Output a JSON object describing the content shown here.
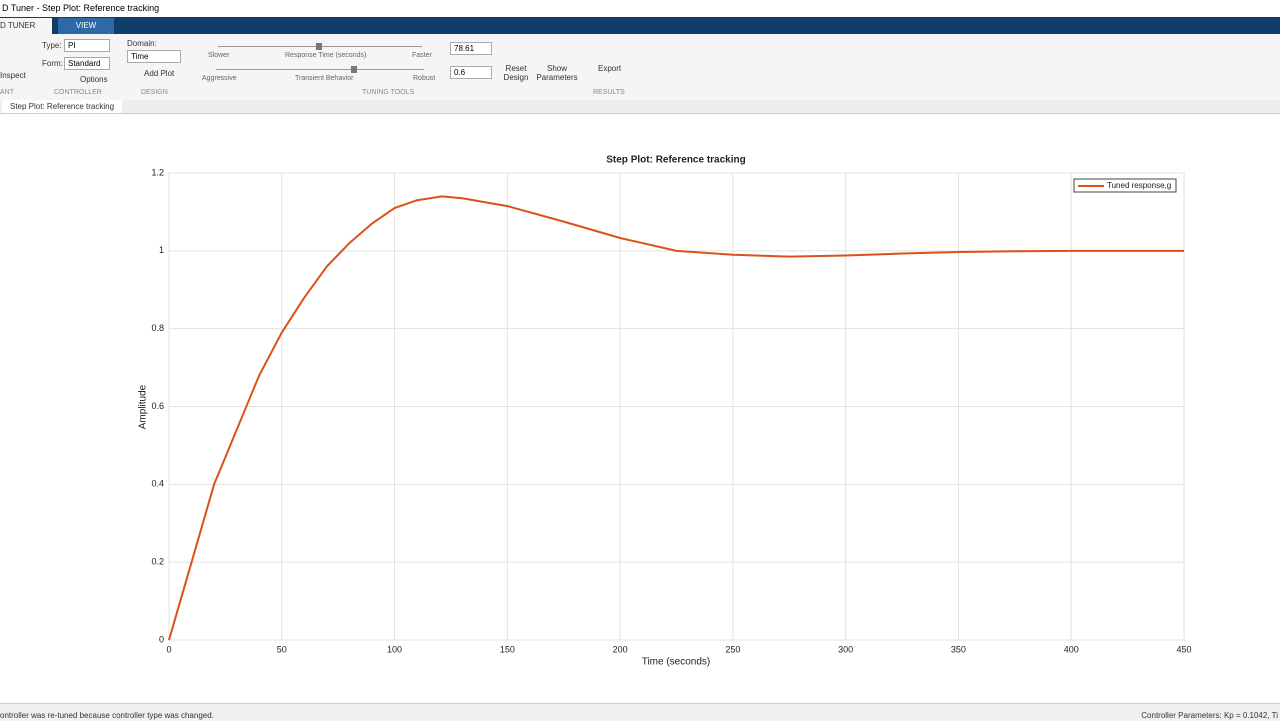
{
  "ui": {
    "window_title": "D Tuner - Step Plot: Reference tracking",
    "tabs": [
      "D TUNER",
      "VIEW"
    ],
    "controller": {
      "type_label": "Type:",
      "type_value": "PI",
      "form_label": "Form:",
      "form_value": "Standard",
      "inspect": "Inspect",
      "options": "Options"
    },
    "design": {
      "domain_label": "Domain:",
      "domain_value": "Time",
      "add_plot": "Add Plot"
    },
    "tuning": {
      "slower": "Slower",
      "response_time": "Response Time (seconds)",
      "faster": "Faster",
      "aggressive": "Aggressive",
      "transient": "Transient Behavior",
      "robust": "Robust",
      "response_value": "78.61",
      "transient_value": "0.6",
      "reset": "Reset Design",
      "show": "Show Parameters"
    },
    "results": {
      "export": "Export"
    },
    "sections": [
      "ANT",
      "CONTROLLER",
      "DESIGN",
      "TUNING TOOLS",
      "RESULTS"
    ],
    "doc_tab": "Step Plot: Reference tracking",
    "status_left": "ontroller was re-tuned because controller type was changed.",
    "status_right": "Controller Parameters: Kp = 0.1042, Ti"
  },
  "chart_data": {
    "type": "line",
    "title": "Step Plot: Reference tracking",
    "x_label": "Time (seconds)",
    "y_label": "Amplitude",
    "x": [
      0,
      10,
      20,
      30,
      40,
      50,
      60,
      70,
      80,
      90,
      100,
      110,
      121,
      130,
      150,
      175,
      200,
      225,
      250,
      275,
      300,
      325,
      350,
      375,
      400,
      425,
      450
    ],
    "series": [
      {
        "name": "Tuned response,g",
        "color": "#d95319",
        "values": [
          0,
          0.2,
          0.4,
          0.54,
          0.68,
          0.79,
          0.88,
          0.96,
          1.02,
          1.07,
          1.11,
          1.13,
          1.14,
          1.135,
          1.115,
          1.075,
          1.033,
          1.0,
          0.99,
          0.985,
          0.988,
          0.993,
          0.997,
          0.999,
          1.0,
          1.0,
          1.0
        ]
      }
    ],
    "xlim": [
      0,
      450
    ],
    "xticks": [
      0,
      50,
      100,
      150,
      200,
      250,
      300,
      350,
      400,
      450
    ],
    "ylim": [
      0,
      1.2
    ],
    "yticks": [
      0,
      0.2,
      0.4,
      0.6,
      0.8,
      1,
      1.2
    ],
    "grid": true,
    "legend": "upper right"
  }
}
